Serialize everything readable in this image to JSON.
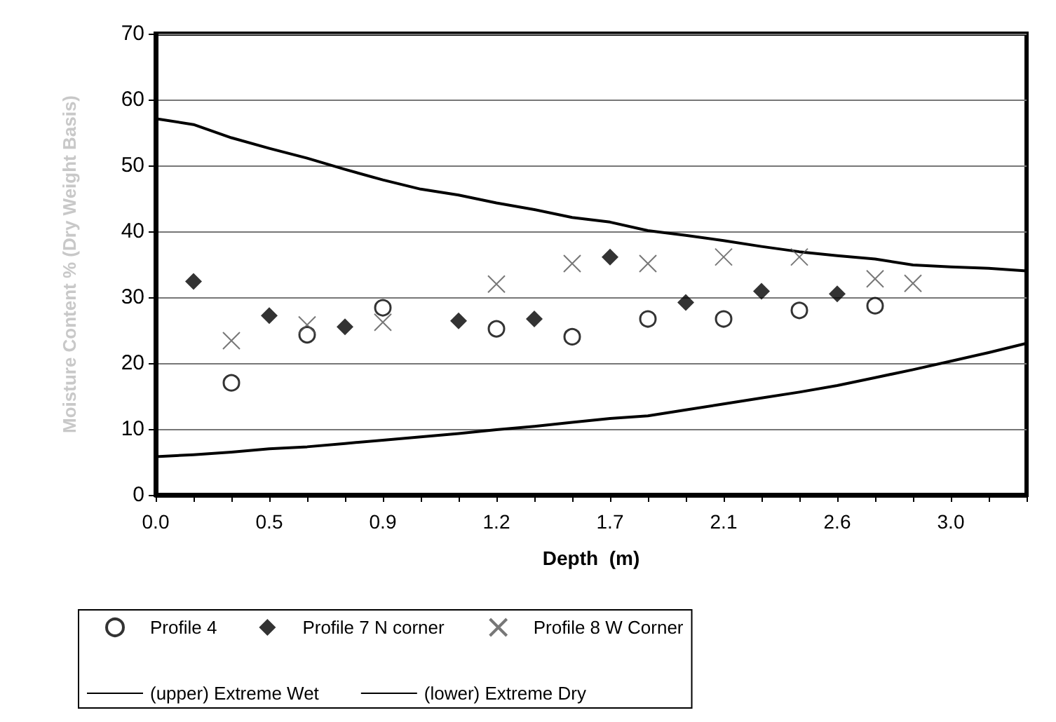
{
  "chart_data": {
    "type": "scatter",
    "xlabel": "Depth  (m)",
    "ylabel": "Moisture Content % (Dry Weight Basis)",
    "categories": [
      "0.0",
      null,
      null,
      "0.5",
      null,
      null,
      "0.9",
      null,
      null,
      "1.2",
      null,
      null,
      "1.7",
      null,
      null,
      "2.1",
      null,
      null,
      "2.6",
      null,
      null,
      "3.0",
      null,
      null
    ],
    "ylim": [
      0,
      70
    ],
    "yticks": [
      0,
      10,
      20,
      30,
      40,
      50,
      60,
      70
    ],
    "grid": "y",
    "legend": "bottom",
    "series": [
      {
        "name": "Profile 4",
        "marker": "circle",
        "color": "#000000",
        "values": [
          null,
          null,
          17,
          null,
          24.3,
          null,
          28.4,
          null,
          null,
          25.2,
          null,
          24.0,
          null,
          26.7,
          null,
          26.7,
          null,
          28.0,
          null,
          28.7,
          null,
          null,
          null,
          null
        ]
      },
      {
        "name": "Profile 7 N corner",
        "marker": "diamond",
        "color": "#000000",
        "values": [
          null,
          32.4,
          null,
          27.2,
          null,
          25.5,
          null,
          null,
          26.4,
          null,
          26.7,
          null,
          36.1,
          null,
          29.2,
          null,
          30.9,
          null,
          30.5,
          null,
          null,
          null,
          null,
          null
        ]
      },
      {
        "name": "Profile 8 W Corner",
        "marker": "cross",
        "color": "#555555",
        "values": [
          null,
          null,
          23.4,
          null,
          25.8,
          null,
          26.2,
          null,
          null,
          32.0,
          null,
          35.1,
          null,
          35.1,
          null,
          36.1,
          null,
          36.1,
          null,
          32.8,
          32.1,
          null,
          null,
          null
        ]
      },
      {
        "name": "(upper) Extreme Wet",
        "type": "line",
        "marker": "none",
        "color": "#000000",
        "values": [
          57.1,
          56.2,
          54.2,
          52.6,
          51.1,
          49.4,
          47.8,
          46.4,
          45.5,
          44.3,
          43.3,
          42.1,
          41.4,
          40.1,
          39.4,
          38.6,
          37.7,
          36.9,
          36.3,
          35.8,
          34.9,
          34.6,
          34.4,
          34.0
        ]
      },
      {
        "name": "(lower) Extreme Dry",
        "type": "line",
        "marker": "none",
        "color": "#000000",
        "values": [
          5.8,
          6.1,
          6.5,
          7.0,
          7.3,
          7.8,
          8.3,
          8.8,
          9.3,
          9.9,
          10.4,
          11.0,
          11.6,
          12.0,
          12.9,
          13.8,
          14.7,
          15.6,
          16.6,
          17.8,
          19.0,
          20.3,
          21.6,
          23.0
        ]
      }
    ]
  }
}
